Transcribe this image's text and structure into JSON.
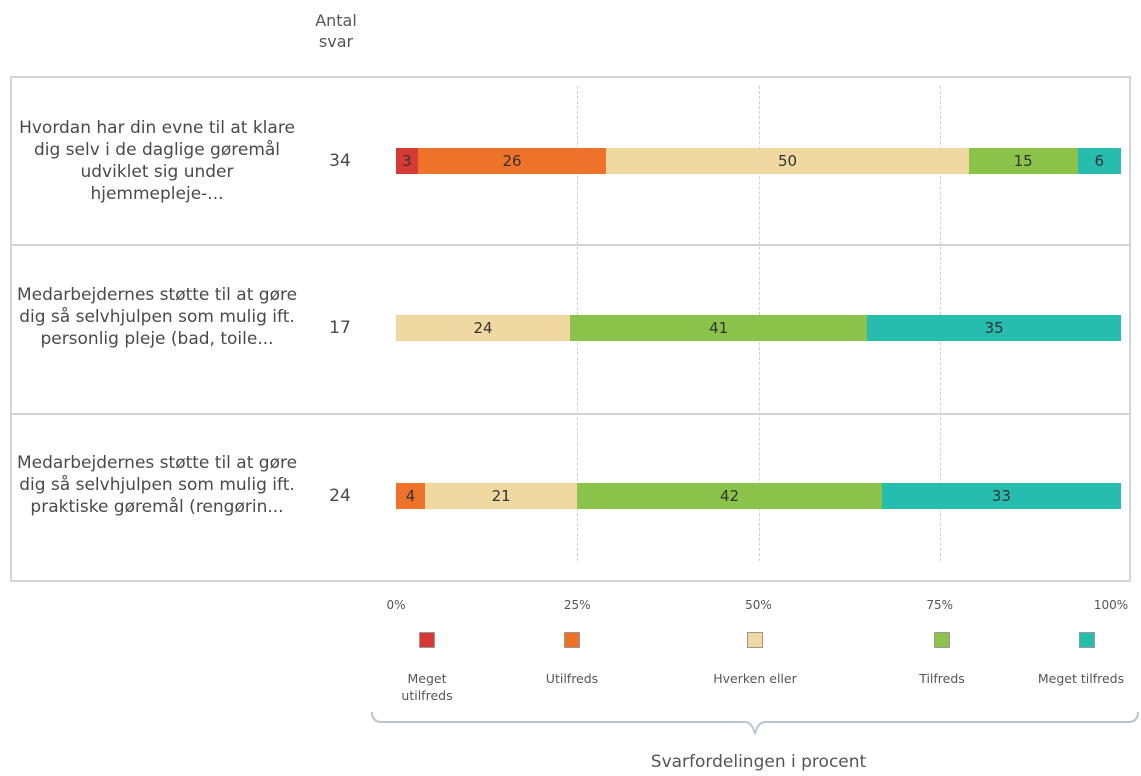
{
  "header": {
    "count_label": "Antal\nsvar"
  },
  "chart_data": {
    "type": "bar",
    "orientation": "horizontal",
    "stacked": true,
    "xlabel": "Svarfordelingen i procent",
    "xlim": [
      0,
      100
    ],
    "xticks": [
      "0%",
      "25%",
      "50%",
      "75%",
      "100%"
    ],
    "grid": true,
    "legend_placement": "bottom",
    "categories": [
      "Hvordan har din evne til at klare dig selv i de daglige gøremål udviklet sig under hjemmepleje-...",
      "Medarbejdernes støtte til at gøre dig så selvhjulpen som mulig ift. personlig pleje (bad, toile...",
      "Medarbejdernes støtte til at gøre dig så selvhjulpen som mulig ift. praktiske gøremål (rengørin..."
    ],
    "counts": [
      "34",
      "17",
      "24"
    ],
    "series": [
      {
        "name": "Meget utilfreds",
        "color": "#d63a34",
        "values": [
          3,
          0,
          0
        ]
      },
      {
        "name": "Utilfreds",
        "color": "#ee7229",
        "values": [
          26,
          0,
          4
        ]
      },
      {
        "name": "Hverken eller",
        "color": "#efd9a0",
        "values": [
          50,
          24,
          21
        ]
      },
      {
        "name": "Tilfreds",
        "color": "#8bc34a",
        "values": [
          15,
          41,
          42
        ]
      },
      {
        "name": "Meget tilfreds",
        "color": "#26bdae",
        "values": [
          6,
          35,
          33
        ]
      }
    ]
  }
}
